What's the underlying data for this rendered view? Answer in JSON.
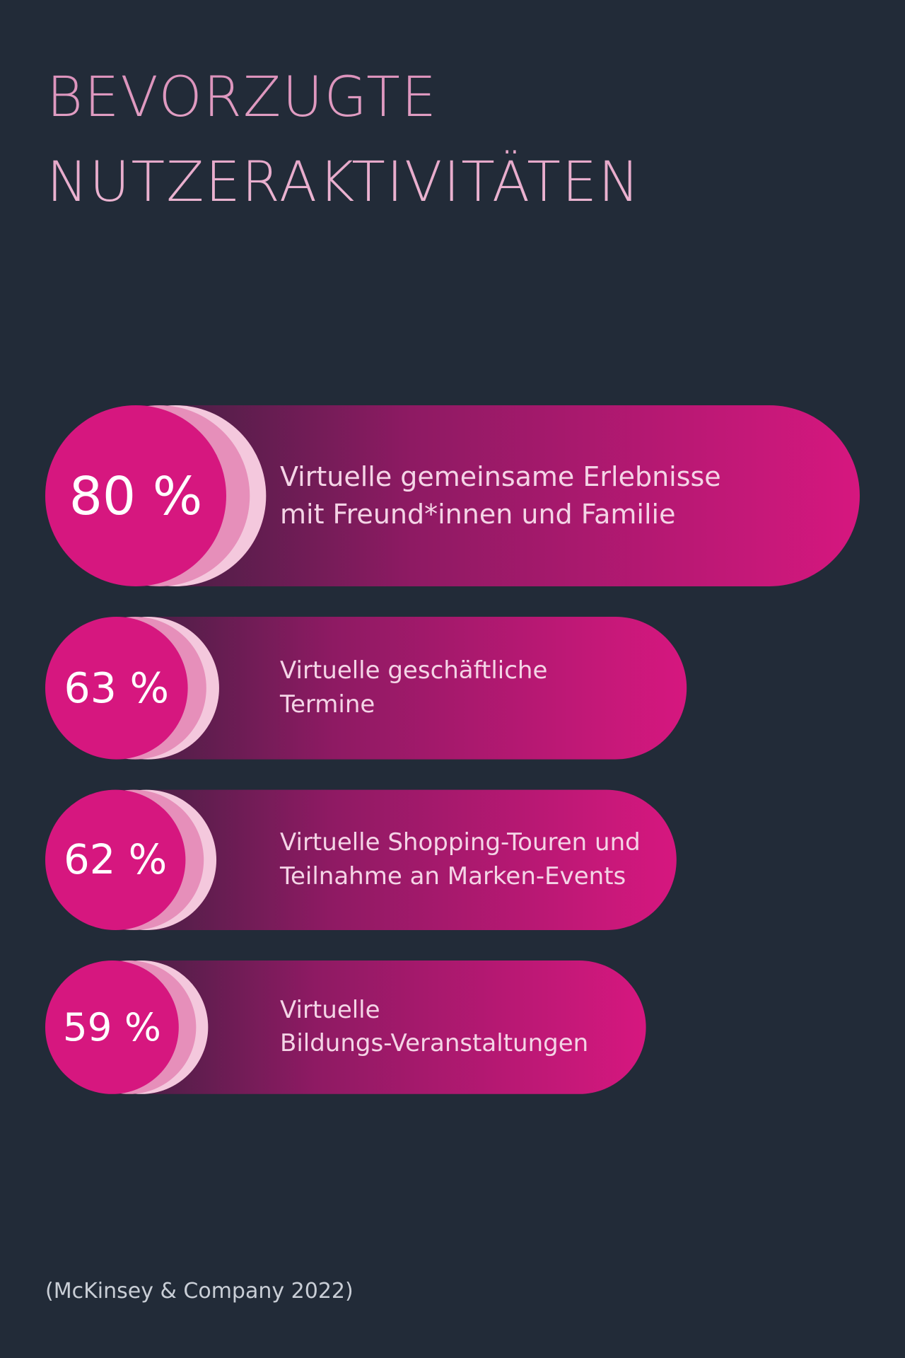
{
  "chart_data": {
    "type": "bar",
    "orientation": "horizontal",
    "title": "BEVORZUGTE NUTZERAKTIVITÄTEN",
    "categories": [
      "Virtuelle gemeinsame Erlebnisse\nmit Freund*innen und Familie",
      "Virtuelle geschäftliche\nTermine",
      "Virtuelle Shopping-Touren und\nTeilnahme an Marken-Events",
      "Virtuelle\nBildungs-Veranstaltungen"
    ],
    "values": [
      80,
      63,
      62,
      59
    ],
    "value_labels": [
      "80 %",
      "63 %",
      "62 %",
      "59 %"
    ],
    "color": "#d6177f",
    "source": "(McKinsey & Company 2022)"
  }
}
